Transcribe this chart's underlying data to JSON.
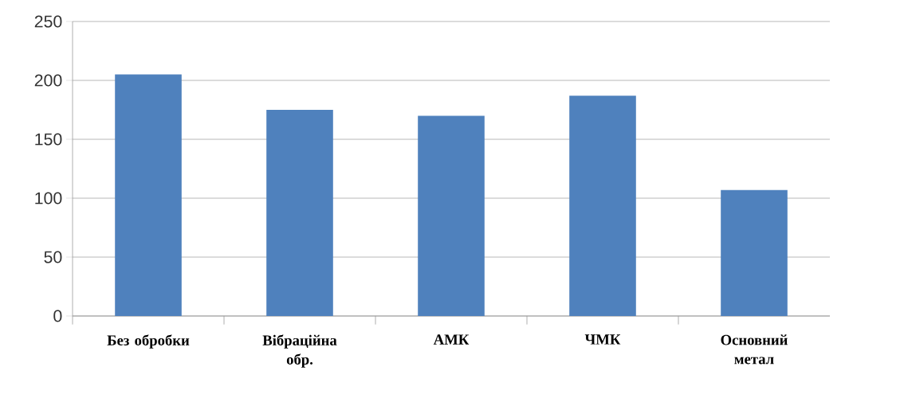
{
  "chart_data": {
    "type": "bar",
    "categories": [
      "Без обробки",
      "Вібраційна обр.",
      "АМК",
      "ЧМК",
      "Основний метал"
    ],
    "values": [
      205,
      175,
      170,
      187,
      107
    ],
    "color": "#4f81bd",
    "ylim": [
      0,
      250
    ],
    "yticks": [
      0,
      50,
      100,
      150,
      200,
      250
    ],
    "grid": "y"
  }
}
